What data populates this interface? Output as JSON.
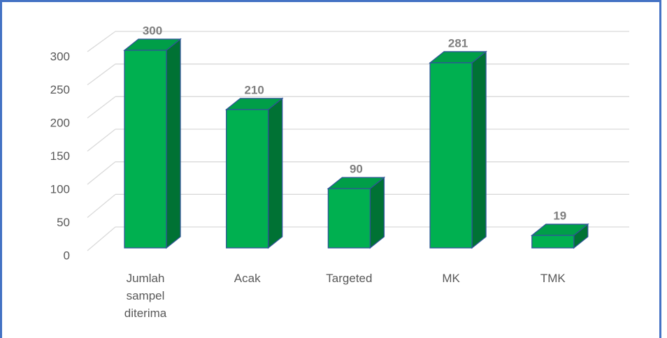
{
  "chart_data": {
    "type": "bar",
    "categories": [
      "Jumlah sampel diterima",
      "Acak",
      "Targeted",
      "MK",
      "TMK"
    ],
    "values": [
      300,
      210,
      90,
      281,
      19
    ],
    "color": "#00b050",
    "ylim": [
      0,
      300
    ],
    "yticks": [
      0,
      50,
      100,
      150,
      200,
      250,
      300
    ],
    "grid": true
  }
}
